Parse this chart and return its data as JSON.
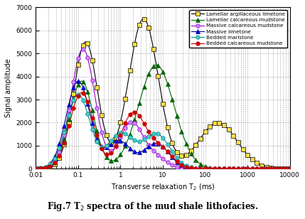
{
  "title": "Fig.7 T$_2$ spectra of the mud shale lithofacies.",
  "xlabel": "Transverse relaxation T$_2$ (ms)",
  "ylabel": "Signal amplitude",
  "xlim": [
    0.01,
    10000
  ],
  "ylim": [
    0,
    7000
  ],
  "yticks": [
    0,
    1000,
    2000,
    3000,
    4000,
    5000,
    6000,
    7000
  ],
  "series": [
    {
      "label": "Lamellar argillaceous limetone",
      "color": "#c8a000",
      "marker": "s",
      "markerfacecolor": "#ffdd44",
      "markeredgecolor": "#000000",
      "linecolor": "#000000",
      "linewidth": 0.8,
      "markersize": 4
    },
    {
      "label": "Lamellar calcareous mudstone",
      "color": "#006400",
      "marker": "^",
      "markerfacecolor": "#006400",
      "markeredgecolor": "#006400",
      "linecolor": "#006400",
      "linewidth": 0.8,
      "markersize": 4
    },
    {
      "label": "Massive calcareous mudstone",
      "color": "#9900cc",
      "marker": "o",
      "markerfacecolor": "#cc88ff",
      "markeredgecolor": "#9900cc",
      "linecolor": "#9900cc",
      "linewidth": 0.8,
      "markersize": 4
    },
    {
      "label": "Massive limetone",
      "color": "#000080",
      "marker": "^",
      "markerfacecolor": "#0000ff",
      "markeredgecolor": "#000080",
      "linecolor": "#000080",
      "linewidth": 0.8,
      "markersize": 4
    },
    {
      "label": "Bedded marlstone",
      "color": "#008888",
      "marker": "o",
      "markerfacecolor": "#44cccc",
      "markeredgecolor": "#008888",
      "linecolor": "#008888",
      "linewidth": 0.8,
      "markersize": 4
    },
    {
      "label": "Bedded calcareous mudstone",
      "color": "#cc0000",
      "marker": "o",
      "markerfacecolor": "#cc0000",
      "markeredgecolor": "#cc0000",
      "linecolor": "#cc0000",
      "linewidth": 0.8,
      "markersize": 4
    }
  ]
}
